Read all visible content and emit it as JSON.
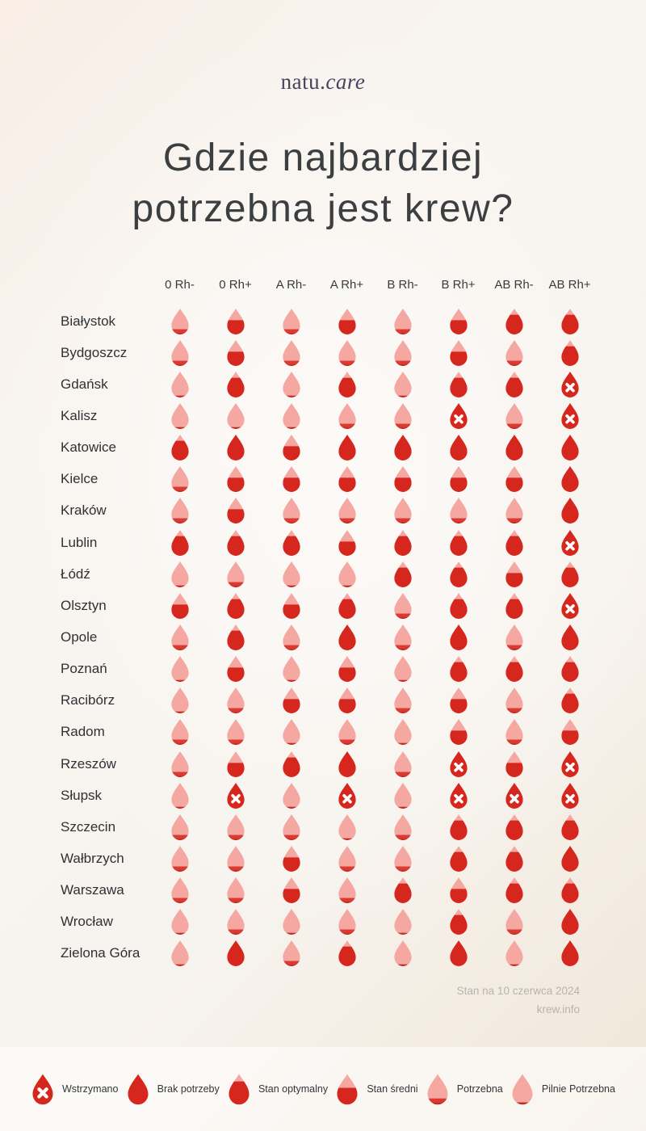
{
  "brand": {
    "regular": "natu.",
    "italic": "care"
  },
  "title": {
    "line1": "Gdzie najbardziej",
    "line2": "potrzebna jest krew?"
  },
  "footer": {
    "line1": "Stan na 10 czerwca 2024",
    "line2": "krew.info"
  },
  "colors": {
    "background": "#F7F2EC",
    "drop_pink": "#F5A7A2",
    "drop_red": "#D6271E",
    "drop_dark": "#C22B21",
    "cross_white": "#FFFFFF",
    "title_text": "#3B3F41",
    "brand_text": "#474460",
    "footer_text": "#B7B3AD"
  },
  "statuses": {
    "wstrzymano": {
      "label": "Wstrzymano",
      "fill": 1.0,
      "cross": true
    },
    "brak": {
      "label": "Brak potrzeby",
      "fill": 1.0
    },
    "optymalny": {
      "label": "Stan optymalny",
      "fill": 0.76
    },
    "sredni": {
      "label": "Stan średni",
      "fill": 0.55
    },
    "potrzebna": {
      "label": "Potrzebna",
      "fill": 0.2
    },
    "pilnie": {
      "label": "Pilnie Potrzebna",
      "fill": 0.07
    }
  },
  "legend_order": [
    "wstrzymano",
    "brak",
    "optymalny",
    "sredni",
    "potrzebna",
    "pilnie"
  ],
  "chart_data": {
    "type": "heatmap",
    "title": "Gdzie najbardziej potrzebna jest krew?",
    "as_of": "Stan na 10 czerwca 2024",
    "source": "krew.info",
    "legend_position": "bottom",
    "columns": [
      "0 Rh-",
      "0 Rh+",
      "A Rh-",
      "A Rh+",
      "B Rh-",
      "B Rh+",
      "AB Rh-",
      "AB Rh+"
    ],
    "rows": [
      {
        "city": "Białystok",
        "values": [
          "potrzebna",
          "sredni",
          "potrzebna",
          "sredni",
          "potrzebna",
          "sredni",
          "optymalny",
          "optymalny"
        ]
      },
      {
        "city": "Bydgoszcz",
        "values": [
          "potrzebna",
          "sredni",
          "potrzebna",
          "potrzebna",
          "potrzebna",
          "sredni",
          "potrzebna",
          "optymalny"
        ]
      },
      {
        "city": "Gdańsk",
        "values": [
          "pilnie",
          "optymalny",
          "pilnie",
          "optymalny",
          "pilnie",
          "optymalny",
          "optymalny",
          "wstrzymano"
        ]
      },
      {
        "city": "Kalisz",
        "values": [
          "pilnie",
          "pilnie",
          "pilnie",
          "potrzebna",
          "potrzebna",
          "wstrzymano",
          "potrzebna",
          "wstrzymano"
        ]
      },
      {
        "city": "Katowice",
        "values": [
          "optymalny",
          "brak",
          "sredni",
          "brak",
          "brak",
          "brak",
          "brak",
          "brak"
        ]
      },
      {
        "city": "Kielce",
        "values": [
          "potrzebna",
          "sredni",
          "sredni",
          "sredni",
          "sredni",
          "sredni",
          "sredni",
          "brak"
        ]
      },
      {
        "city": "Kraków",
        "values": [
          "potrzebna",
          "sredni",
          "potrzebna",
          "potrzebna",
          "potrzebna",
          "potrzebna",
          "potrzebna",
          "brak"
        ]
      },
      {
        "city": "Lublin",
        "values": [
          "optymalny",
          "optymalny",
          "optymalny",
          "sredni",
          "optymalny",
          "optymalny",
          "optymalny",
          "wstrzymano"
        ]
      },
      {
        "city": "Łódź",
        "values": [
          "pilnie",
          "potrzebna",
          "pilnie",
          "pilnie",
          "optymalny",
          "optymalny",
          "sredni",
          "optymalny"
        ]
      },
      {
        "city": "Olsztyn",
        "values": [
          "sredni",
          "optymalny",
          "sredni",
          "optymalny",
          "potrzebna",
          "optymalny",
          "optymalny",
          "wstrzymano"
        ]
      },
      {
        "city": "Opole",
        "values": [
          "potrzebna",
          "optymalny",
          "potrzebna",
          "brak",
          "potrzebna",
          "brak",
          "potrzebna",
          "brak"
        ]
      },
      {
        "city": "Poznań",
        "values": [
          "pilnie",
          "sredni",
          "pilnie",
          "sredni",
          "pilnie",
          "optymalny",
          "optymalny",
          "optymalny"
        ]
      },
      {
        "city": "Racibórz",
        "values": [
          "pilnie",
          "potrzebna",
          "sredni",
          "sredni",
          "potrzebna",
          "sredni",
          "potrzebna",
          "optymalny"
        ]
      },
      {
        "city": "Radom",
        "values": [
          "potrzebna",
          "potrzebna",
          "pilnie",
          "potrzebna",
          "pilnie",
          "sredni",
          "potrzebna",
          "sredni"
        ]
      },
      {
        "city": "Rzeszów",
        "values": [
          "potrzebna",
          "sredni",
          "optymalny",
          "brak",
          "potrzebna",
          "wstrzymano",
          "sredni",
          "wstrzymano"
        ]
      },
      {
        "city": "Słupsk",
        "values": [
          "pilnie",
          "wstrzymano",
          "pilnie",
          "wstrzymano",
          "pilnie",
          "wstrzymano",
          "wstrzymano",
          "wstrzymano"
        ]
      },
      {
        "city": "Szczecin",
        "values": [
          "potrzebna",
          "potrzebna",
          "potrzebna",
          "pilnie",
          "potrzebna",
          "optymalny",
          "optymalny",
          "optymalny"
        ]
      },
      {
        "city": "Wałbrzych",
        "values": [
          "potrzebna",
          "potrzebna",
          "sredni",
          "potrzebna",
          "potrzebna",
          "optymalny",
          "optymalny",
          "brak"
        ]
      },
      {
        "city": "Warszawa",
        "values": [
          "potrzebna",
          "potrzebna",
          "sredni",
          "potrzebna",
          "optymalny",
          "sredni",
          "optymalny",
          "optymalny"
        ]
      },
      {
        "city": "Wrocław",
        "values": [
          "pilnie",
          "potrzebna",
          "pilnie",
          "potrzebna",
          "pilnie",
          "optymalny",
          "potrzebna",
          "brak"
        ]
      },
      {
        "city": "Zielona Góra",
        "values": [
          "pilnie",
          "brak",
          "potrzebna",
          "optymalny",
          "pilnie",
          "brak",
          "pilnie",
          "brak"
        ]
      }
    ]
  }
}
